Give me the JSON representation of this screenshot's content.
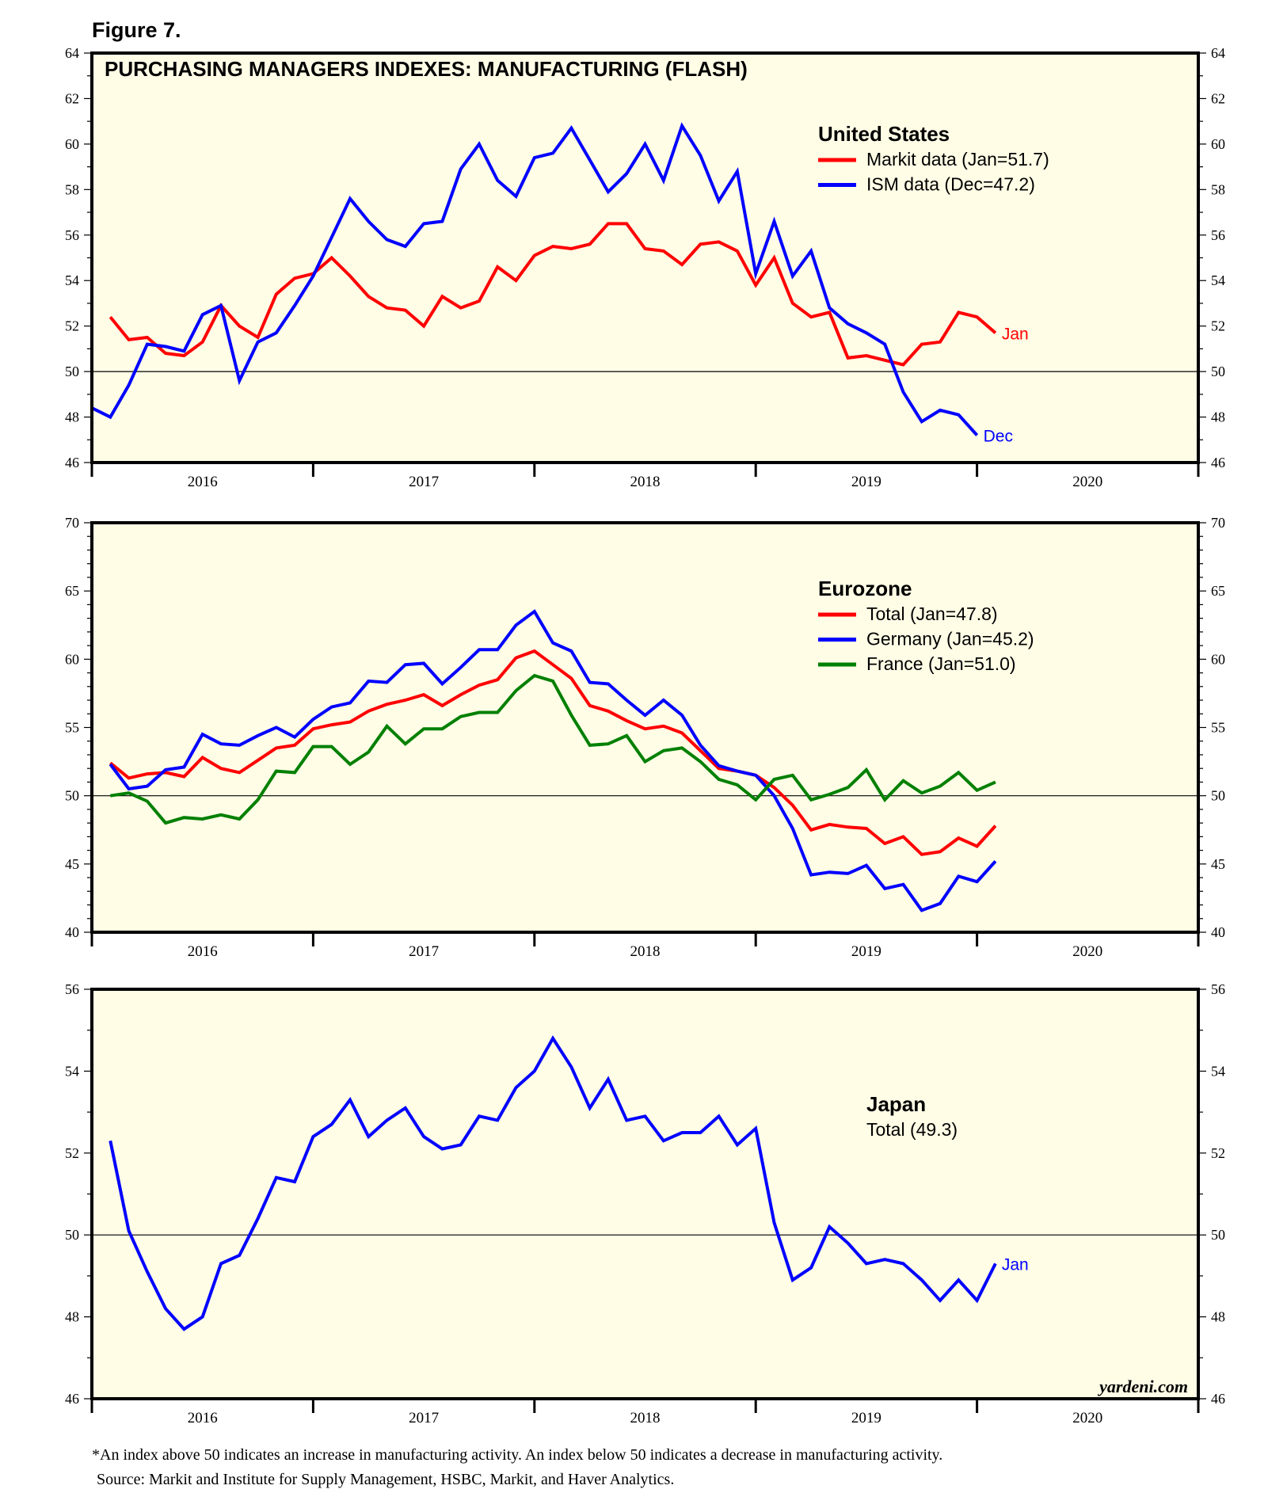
{
  "figure_label": "Figure 7.",
  "footnote": "*An index above 50 indicates an increase in manufacturing activity. An index below 50 indicates a decrease in manufacturing activity.",
  "source": "Source: Markit and Institute for Supply Management, HSBC, Markit, and Haver Analytics.",
  "watermark": "yardeni.com",
  "colors": {
    "background": "#fffde6",
    "red": "#ff0000",
    "blue": "#0000ff",
    "green": "#008000"
  },
  "chart_data": [
    {
      "type": "line",
      "title": "PURCHASING MANAGERS INDEXES: MANUFACTURING (FLASH)",
      "legend_title": "United States",
      "legend_placement": "top-right",
      "ylim": [
        46,
        64
      ],
      "y_major_ticks": [
        46,
        48,
        50,
        52,
        54,
        56,
        58,
        60,
        62,
        64
      ],
      "y_minor_step": 1,
      "reference_line": 50,
      "x_tick_labels": [
        "2016",
        "2017",
        "2018",
        "2019",
        "2020"
      ],
      "xlim": [
        "2016-01",
        "2020-12"
      ],
      "series": [
        {
          "name": "Markit data (Jan=51.7)",
          "color": "#ff0000",
          "start": "2016-01",
          "end_label": "Jan",
          "values": [
            52.4,
            51.4,
            51.5,
            50.8,
            50.7,
            51.3,
            52.9,
            52.0,
            51.5,
            53.4,
            54.1,
            54.3,
            55.0,
            54.2,
            53.3,
            52.8,
            52.7,
            52.0,
            53.3,
            52.8,
            53.1,
            54.6,
            54.0,
            55.1,
            55.5,
            55.4,
            55.6,
            56.5,
            56.5,
            55.4,
            55.3,
            54.7,
            55.6,
            55.7,
            55.3,
            53.8,
            55.0,
            53.0,
            52.4,
            52.6,
            50.6,
            50.7,
            50.5,
            50.3,
            51.2,
            51.3,
            52.6,
            52.4,
            51.7
          ]
        },
        {
          "name": "ISM data (Dec=47.2)",
          "color": "#0000ff",
          "start": "2015-12",
          "end_label": "Dec",
          "values": [
            48.4,
            48.0,
            49.4,
            51.2,
            51.1,
            50.9,
            52.5,
            52.9,
            49.6,
            51.3,
            51.7,
            52.9,
            54.2,
            55.9,
            57.6,
            56.6,
            55.8,
            55.5,
            56.5,
            56.6,
            58.9,
            60.0,
            58.4,
            57.7,
            59.4,
            59.6,
            60.7,
            59.3,
            57.9,
            58.7,
            60.0,
            58.4,
            60.8,
            59.5,
            57.5,
            58.8,
            54.3,
            56.6,
            54.2,
            55.3,
            52.8,
            52.1,
            51.7,
            51.2,
            49.1,
            47.8,
            48.3,
            48.1,
            47.2
          ]
        }
      ]
    },
    {
      "type": "line",
      "legend_title": "Eurozone",
      "legend_placement": "top-right",
      "ylim": [
        40,
        70
      ],
      "y_major_ticks": [
        40,
        45,
        50,
        55,
        60,
        65,
        70
      ],
      "y_minor_step": 1,
      "reference_line": 50,
      "x_tick_labels": [
        "2016",
        "2017",
        "2018",
        "2019",
        "2020"
      ],
      "xlim": [
        "2016-01",
        "2020-12"
      ],
      "series": [
        {
          "name": "Total (Jan=47.8)",
          "color": "#ff0000",
          "start": "2016-01",
          "values": [
            52.4,
            51.3,
            51.6,
            51.7,
            51.4,
            52.8,
            52.0,
            51.7,
            52.6,
            53.5,
            53.7,
            54.9,
            55.2,
            55.4,
            56.2,
            56.7,
            57.0,
            57.4,
            56.6,
            57.4,
            58.1,
            58.5,
            60.1,
            60.6,
            59.6,
            58.6,
            56.6,
            56.2,
            55.5,
            54.9,
            55.1,
            54.6,
            53.3,
            52.0,
            51.8,
            51.5,
            50.6,
            49.3,
            47.5,
            47.9,
            47.7,
            47.6,
            46.5,
            47.0,
            45.7,
            45.9,
            46.9,
            46.3,
            47.8
          ]
        },
        {
          "name": "Germany (Jan=45.2)",
          "color": "#0000ff",
          "start": "2016-01",
          "values": [
            52.3,
            50.5,
            50.7,
            51.9,
            52.1,
            54.5,
            53.8,
            53.7,
            54.4,
            55.0,
            54.3,
            55.6,
            56.5,
            56.8,
            58.4,
            58.3,
            59.6,
            59.7,
            58.2,
            59.4,
            60.7,
            60.7,
            62.5,
            63.5,
            61.2,
            60.6,
            58.3,
            58.2,
            57.0,
            55.9,
            57.0,
            55.9,
            53.7,
            52.2,
            51.8,
            51.5,
            50.0,
            47.6,
            44.2,
            44.4,
            44.3,
            44.9,
            43.2,
            43.5,
            41.6,
            42.1,
            44.1,
            43.7,
            45.2
          ]
        },
        {
          "name": "France (Jan=51.0)",
          "color": "#008000",
          "start": "2016-01",
          "values": [
            50.0,
            50.2,
            49.6,
            48.0,
            48.4,
            48.3,
            48.6,
            48.3,
            49.7,
            51.8,
            51.7,
            53.6,
            53.6,
            52.3,
            53.2,
            55.1,
            53.8,
            54.9,
            54.9,
            55.8,
            56.1,
            56.1,
            57.7,
            58.8,
            58.4,
            55.9,
            53.7,
            53.8,
            54.4,
            52.5,
            53.3,
            53.5,
            52.5,
            51.2,
            50.8,
            49.7,
            51.2,
            51.5,
            49.7,
            50.1,
            50.6,
            51.9,
            49.7,
            51.1,
            50.2,
            50.7,
            51.7,
            50.4,
            51.0
          ]
        }
      ]
    },
    {
      "type": "line",
      "legend_title": "Japan",
      "legend_placement": "top-right",
      "ylim": [
        46,
        56
      ],
      "y_major_ticks": [
        46,
        48,
        50,
        52,
        54,
        56
      ],
      "y_minor_step": 1,
      "reference_line": 50,
      "x_tick_labels": [
        "2016",
        "2017",
        "2018",
        "2019",
        "2020"
      ],
      "xlim": [
        "2016-01",
        "2020-12"
      ],
      "series": [
        {
          "name": "Total (49.3)",
          "color": "#0000ff",
          "start": "2016-01",
          "end_label": "Jan",
          "legend_swatch": false,
          "values": [
            52.3,
            50.1,
            49.1,
            48.2,
            47.7,
            48.0,
            49.3,
            49.5,
            50.4,
            51.4,
            51.3,
            52.4,
            52.7,
            53.3,
            52.4,
            52.8,
            53.1,
            52.4,
            52.1,
            52.2,
            52.9,
            52.8,
            53.6,
            54.0,
            54.8,
            54.1,
            53.1,
            53.8,
            52.8,
            52.9,
            52.3,
            52.5,
            52.5,
            52.9,
            52.2,
            52.6,
            50.3,
            48.9,
            49.2,
            50.2,
            49.8,
            49.3,
            49.4,
            49.3,
            48.9,
            48.4,
            48.9,
            48.4,
            49.3
          ]
        }
      ]
    }
  ]
}
